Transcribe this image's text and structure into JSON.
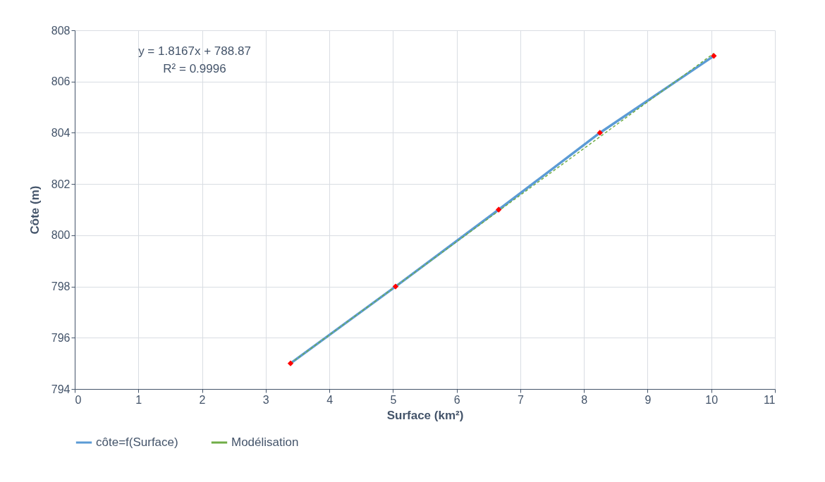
{
  "chart_data": {
    "type": "line",
    "xlabel": "Surface (km²)",
    "ylabel": "Côte (m)",
    "xlim": [
      0,
      11
    ],
    "xticks": [
      0,
      1,
      2,
      3,
      4,
      5,
      6,
      7,
      8,
      9,
      10,
      11
    ],
    "ylim": [
      794,
      808
    ],
    "yticks": [
      794,
      796,
      798,
      800,
      802,
      804,
      806,
      808
    ],
    "grid": true,
    "legend": "bottom",
    "annotations": [
      "y = 1.8167x + 788.87",
      "R² = 0.9996"
    ],
    "series": [
      {
        "name": "côte=f(Surface)",
        "color": "#5b9bd5",
        "marker": "diamond",
        "colors": [
          "#ff0000",
          "#ff0000",
          "#ff0000",
          "#ff0000",
          "#ff0000"
        ],
        "x": [
          3.39,
          5.04,
          6.66,
          8.25,
          10.04
        ],
        "values": [
          795,
          798,
          801,
          804,
          807
        ]
      },
      {
        "name": "Modélisation",
        "type": "line",
        "line_style": "dashed",
        "color": "#70ad47",
        "x": [
          3.39,
          10.04
        ],
        "values": [
          795.0,
          807.1
        ]
      }
    ]
  }
}
